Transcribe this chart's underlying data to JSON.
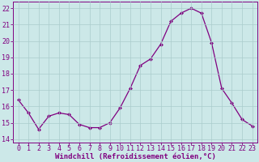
{
  "x": [
    0,
    1,
    2,
    3,
    4,
    5,
    6,
    7,
    8,
    9,
    10,
    11,
    12,
    13,
    14,
    15,
    16,
    17,
    18,
    19,
    20,
    21,
    22,
    23
  ],
  "y": [
    16.4,
    15.6,
    14.6,
    15.4,
    15.6,
    15.5,
    14.9,
    14.7,
    14.7,
    15.0,
    15.9,
    17.1,
    18.5,
    18.9,
    19.8,
    21.2,
    21.7,
    22.0,
    21.7,
    19.9,
    17.1,
    16.2,
    15.2,
    14.8
  ],
  "line_color": "#800080",
  "marker": "D",
  "marker_size": 2.0,
  "bg_color": "#cce8e8",
  "grid_color": "#aacccc",
  "xlabel": "Windchill (Refroidissement éolien,°C)",
  "xlim": [
    -0.5,
    23.5
  ],
  "ylim": [
    13.8,
    22.4
  ],
  "yticks": [
    14,
    15,
    16,
    17,
    18,
    19,
    20,
    21,
    22
  ],
  "xticks": [
    0,
    1,
    2,
    3,
    4,
    5,
    6,
    7,
    8,
    9,
    10,
    11,
    12,
    13,
    14,
    15,
    16,
    17,
    18,
    19,
    20,
    21,
    22,
    23
  ],
  "label_color": "#800080",
  "tick_color": "#800080",
  "spine_color": "#800080",
  "xlabel_fontsize": 6.5,
  "tick_fontsize": 6.0,
  "linewidth": 0.9
}
